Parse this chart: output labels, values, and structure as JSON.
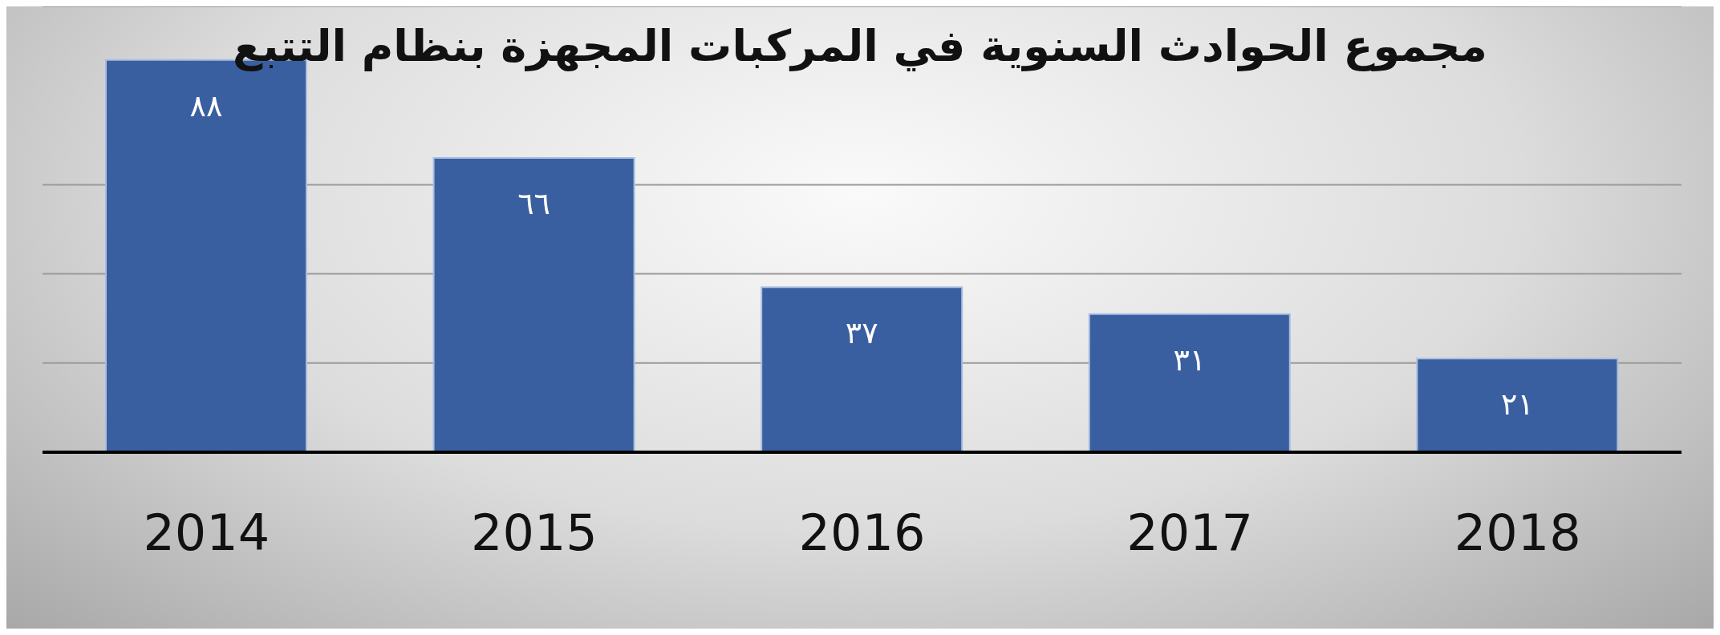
{
  "chart_data": {
    "type": "bar",
    "title": "مجموع الحوادث السنوية في المركبات المجهزة بنظام التتبع",
    "categories": [
      "2014",
      "2015",
      "2016",
      "2017",
      "2018"
    ],
    "values": [
      88,
      66,
      37,
      31,
      21
    ],
    "value_labels": [
      "٨٨",
      "٦٦",
      "٣٧",
      "٣١",
      "٢١"
    ],
    "color": "#3a5fa0",
    "ylim": [
      0,
      100
    ],
    "yticks": [
      {
        "value": 0,
        "label": null
      },
      {
        "value": 20,
        "label": null
      },
      {
        "value": 40,
        "label": null
      },
      {
        "value": 60,
        "label": null
      }
    ],
    "grid": "y",
    "tick_labels": "x"
  }
}
